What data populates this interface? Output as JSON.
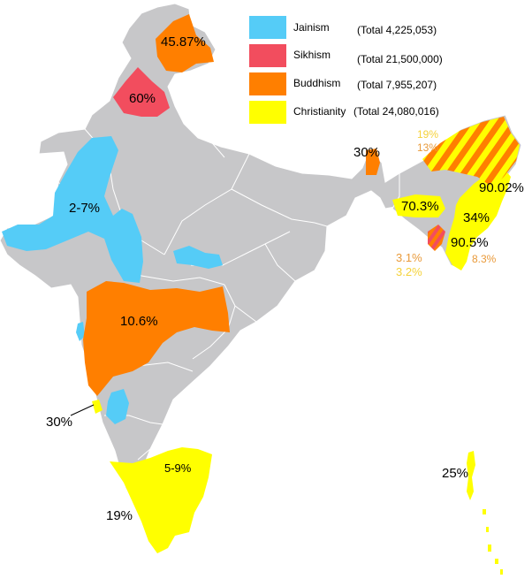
{
  "legend": [
    {
      "name": "Jainism",
      "total": "(Total   4,225,053)",
      "color": "#55ccf7"
    },
    {
      "name": "Sikhism",
      "total": "(Total  21,500,000)",
      "color": "#f24d5e"
    },
    {
      "name": "Buddhism",
      "total": "(Total  7,955,207)",
      "color": "#ff7f00"
    },
    {
      "name": "Christianity",
      "total": "(Total  24,080,016)",
      "color": "#ffff00"
    }
  ],
  "colors": {
    "land": "#c7c7c9",
    "border": "#ffffff",
    "jainism": "#55ccf7",
    "sikhism": "#f24d5e",
    "buddhism": "#ff7f00",
    "christianity": "#ffff00",
    "annotation_orange": "#e99a3a",
    "annotation_yellow": "#f5d23a"
  },
  "labels": {
    "ladakh": "45.87%",
    "punjab": "60%",
    "gujarat_rajasthan": "2-7%",
    "maharashtra": "10.6%",
    "goa": "30%",
    "kerala": "19%",
    "tamil_nadu": "5-9%",
    "sikkim": "30%",
    "arunachal_christian": "19%",
    "arunachal_buddhist": "13%",
    "nagaland": "90.02%",
    "meghalaya": "70.3%",
    "manipur": "34%",
    "mizoram": "90.5%",
    "tripura_buddhist": "3.1%",
    "tripura_christian": "3.2%",
    "mizoram_buddhist": "8.3%",
    "andaman": "25%"
  }
}
